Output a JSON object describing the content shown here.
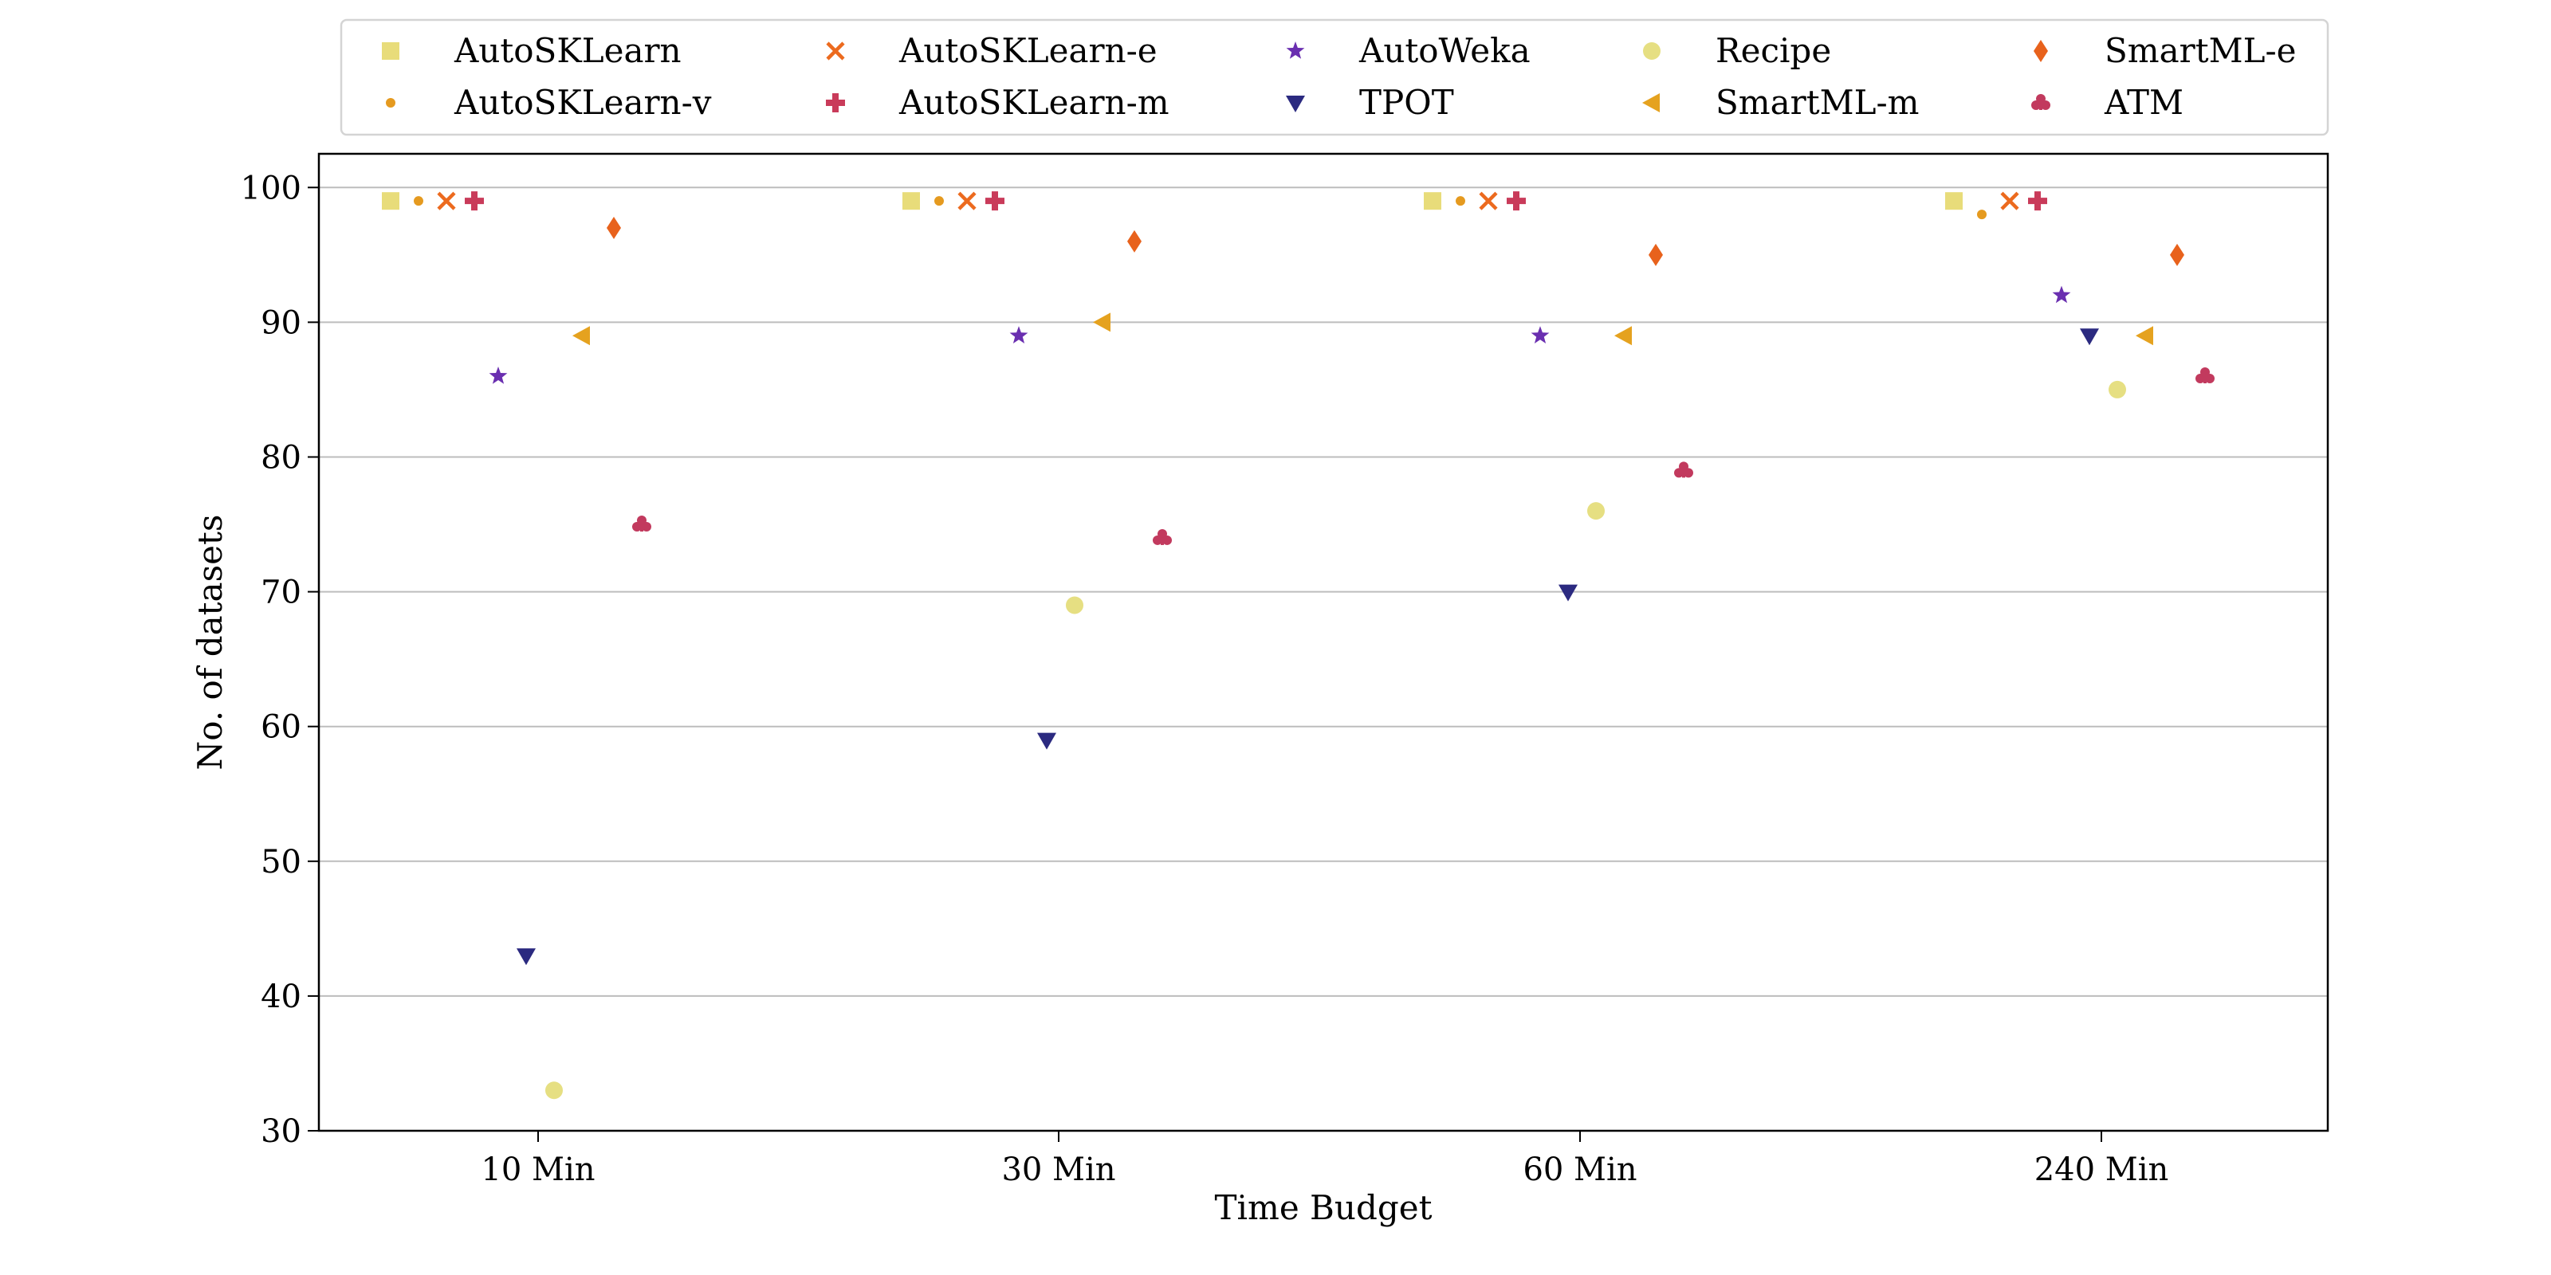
{
  "chart_data": {
    "type": "scatter",
    "title": "",
    "xlabel": "Time Budget",
    "ylabel": "No. of datasets",
    "categories": [
      "10 Min",
      "30 Min",
      "60 Min",
      "240 Min"
    ],
    "ylim": [
      30,
      102.5
    ],
    "yticks": [
      30,
      40,
      50,
      60,
      70,
      80,
      90,
      100
    ],
    "grid": "horizontal",
    "legend_position": "top",
    "series": [
      {
        "name": "AutoSKLearn",
        "marker": "square",
        "color": "#e8dc7a",
        "values": [
          99,
          99,
          99,
          99
        ]
      },
      {
        "name": "AutoSKLearn-v",
        "marker": "dot",
        "color": "#e59a1f",
        "values": [
          99,
          99,
          99,
          98
        ]
      },
      {
        "name": "AutoSKLearn-e",
        "marker": "x",
        "color": "#ec6a1e",
        "values": [
          99,
          99,
          99,
          99
        ]
      },
      {
        "name": "AutoSKLearn-m",
        "marker": "plus",
        "color": "#c93b5a",
        "values": [
          99,
          99,
          99,
          99
        ]
      },
      {
        "name": "AutoWeka",
        "marker": "star",
        "color": "#6a2fb0",
        "values": [
          86,
          89,
          89,
          92
        ]
      },
      {
        "name": "TPOT",
        "marker": "triangle-down",
        "color": "#2b2a80",
        "values": [
          43,
          59,
          70,
          89
        ]
      },
      {
        "name": "Recipe",
        "marker": "circle",
        "color": "#e6df82",
        "values": [
          33,
          69,
          76,
          85
        ]
      },
      {
        "name": "SmartML-m",
        "marker": "triangle-left",
        "color": "#e5a21f",
        "values": [
          89,
          90,
          89,
          89
        ]
      },
      {
        "name": "SmartML-e",
        "marker": "diamond",
        "color": "#e8621c",
        "values": [
          97,
          96,
          95,
          95
        ]
      },
      {
        "name": "ATM",
        "marker": "club",
        "color": "#c23a5e",
        "values": [
          75,
          74,
          79,
          86
        ]
      }
    ]
  }
}
